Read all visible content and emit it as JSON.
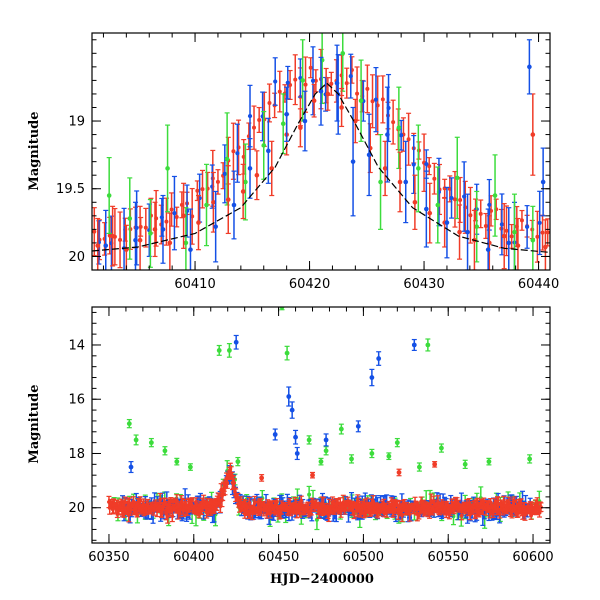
{
  "colors": {
    "g": "#3cdc3c",
    "r": "#f03c28",
    "b": "#1450e6",
    "model": "#000000"
  },
  "chart_data": [
    {
      "type": "scatter",
      "title": "",
      "xlabel": "",
      "ylabel": "Magnitude",
      "xlim": [
        60401,
        60441
      ],
      "ylim": [
        20.1,
        18.35
      ],
      "y_inverted": true,
      "xticks": [
        60410,
        60420,
        60430,
        60440
      ],
      "yticks": [
        19,
        19.5,
        20
      ],
      "ytick_labels": [
        "19",
        "19.5",
        "20"
      ],
      "model": {
        "type": "microlensing-peak",
        "t0": 60421.5,
        "peak_mag": 18.72,
        "baseline_mag": 20.0,
        "x": [
          60401,
          60405,
          60410,
          60414,
          60417,
          60419,
          60420.5,
          60421.5,
          60422.5,
          60424,
          60426,
          60429,
          60433,
          60437,
          60441
        ],
        "y": [
          19.96,
          19.93,
          19.83,
          19.64,
          19.34,
          19.02,
          18.8,
          18.72,
          18.8,
          19.02,
          19.34,
          19.64,
          19.85,
          19.94,
          19.97
        ]
      },
      "series": [
        {
          "band": "g",
          "x": [
            60402.5,
            60404.3,
            60406.1,
            60407.6,
            60409.2,
            60411.0,
            60412.8,
            60414.4,
            60416.0,
            60417.7,
            60419.4,
            60421.1,
            60422.9,
            60424.5,
            60426.2,
            60427.8,
            60429.5,
            60431.2,
            60432.9,
            60434.6,
            60436.2,
            60437.9,
            60439.5
          ],
          "y": [
            19.55,
            19.72,
            19.83,
            19.35,
            19.9,
            19.62,
            19.28,
            19.45,
            19.18,
            19.02,
            18.7,
            18.55,
            18.5,
            18.85,
            19.45,
            19.05,
            19.35,
            19.62,
            19.42,
            19.78,
            19.55,
            19.82,
            19.88
          ],
          "err": [
            0.28,
            0.3,
            0.25,
            0.32,
            0.26,
            0.3,
            0.34,
            0.28,
            0.25,
            0.22,
            0.3,
            0.32,
            0.28,
            0.3,
            0.35,
            0.3,
            0.32,
            0.28,
            0.3,
            0.26,
            0.3,
            0.28,
            0.25
          ]
        },
        {
          "band": "r",
          "x": [
            60401.5,
            60402.8,
            60404.0,
            60405.2,
            60406.5,
            60407.8,
            60409.0,
            60410.3,
            60411.6,
            60412.9,
            60414.2,
            60415.4,
            60416.7,
            60418.0,
            60419.2,
            60420.4,
            60421.6,
            60422.8,
            60424.0,
            60425.3,
            60426.6,
            60427.9,
            60429.2,
            60430.5,
            60431.8,
            60433.1,
            60434.4,
            60435.7,
            60437.0,
            60438.2,
            60439.5,
            60440.6
          ],
          "y": [
            19.92,
            19.85,
            19.95,
            19.88,
            19.8,
            19.9,
            19.7,
            19.75,
            19.6,
            19.58,
            19.52,
            19.4,
            19.35,
            19.1,
            19.05,
            18.85,
            18.8,
            18.9,
            19.0,
            19.2,
            19.35,
            19.45,
            19.6,
            19.68,
            19.75,
            19.82,
            19.88,
            19.9,
            19.85,
            19.92,
            19.1,
            19.93
          ],
          "err": [
            0.2,
            0.22,
            0.18,
            0.25,
            0.2,
            0.22,
            0.24,
            0.2,
            0.22,
            0.25,
            0.2,
            0.18,
            0.2,
            0.15,
            0.14,
            0.12,
            0.12,
            0.14,
            0.16,
            0.18,
            0.2,
            0.22,
            0.2,
            0.22,
            0.18,
            0.2,
            0.22,
            0.2,
            0.24,
            0.2,
            0.3,
            0.2
          ]
        },
        {
          "band": "b",
          "x": [
            60402.2,
            60404.8,
            60407.2,
            60409.6,
            60411.8,
            60413.4,
            60414.8,
            60416.4,
            60418.0,
            60419.6,
            60421.0,
            60422.4,
            60423.8,
            60425.2,
            60426.8,
            60428.4,
            60430.2,
            60432.0,
            60433.8,
            60435.6,
            60437.4,
            60439.2,
            60440.4
          ],
          "y": [
            19.92,
            19.88,
            19.8,
            19.95,
            19.78,
            19.62,
            19.35,
            19.22,
            18.95,
            19.0,
            18.78,
            18.72,
            19.3,
            19.25,
            19.1,
            19.45,
            19.65,
            19.75,
            19.82,
            19.95,
            19.9,
            18.6,
            19.45
          ],
          "err": [
            0.26,
            0.28,
            0.25,
            0.3,
            0.26,
            0.25,
            0.22,
            0.24,
            0.2,
            0.22,
            0.25,
            0.28,
            0.4,
            0.3,
            0.35,
            0.3,
            0.28,
            0.26,
            0.28,
            0.3,
            0.26,
            0.2,
            0.25
          ]
        }
      ]
    },
    {
      "type": "scatter",
      "title": "",
      "xlabel": "HJD−2400000",
      "ylabel": "Magnitude",
      "xlim": [
        60340,
        60610
      ],
      "ylim": [
        21.3,
        12.6
      ],
      "y_inverted": true,
      "xticks": [
        60350,
        60400,
        60450,
        60500,
        60550,
        60600
      ],
      "yticks": [
        14,
        16,
        18,
        20
      ],
      "ytick_labels": [
        "14",
        "16",
        "18",
        "20"
      ],
      "baseline": {
        "x_start": 60350,
        "x_end": 60605,
        "mag": 20.0,
        "g_scatter": 0.55,
        "r_scatter": 0.42,
        "b_scatter": 0.4
      },
      "bump": {
        "t0": 60421,
        "peak_mag": 18.75,
        "width_days": 3
      },
      "series": [
        {
          "band": "g",
          "x": [
            60362,
            60366,
            60375,
            60383,
            60390,
            60398,
            60415,
            60421,
            60426,
            60452,
            60455,
            60468,
            60475,
            60478,
            60487,
            60493,
            60505,
            60515,
            60520,
            60533,
            60538,
            60546,
            60560,
            60574,
            60598
          ],
          "y": [
            16.9,
            17.5,
            17.6,
            17.9,
            18.3,
            18.5,
            14.2,
            14.2,
            18.3,
            12.6,
            14.3,
            17.5,
            18.3,
            17.9,
            17.1,
            18.2,
            18.0,
            18.1,
            17.6,
            18.5,
            14.0,
            17.8,
            18.4,
            18.3,
            18.2
          ],
          "err": [
            0.15,
            0.18,
            0.15,
            0.15,
            0.12,
            0.12,
            0.18,
            0.25,
            0.15,
            0.1,
            0.25,
            0.15,
            0.12,
            0.15,
            0.18,
            0.15,
            0.15,
            0.12,
            0.15,
            0.15,
            0.22,
            0.15,
            0.15,
            0.12,
            0.15
          ]
        },
        {
          "band": "b",
          "x": [
            60363,
            60425,
            60448,
            60456,
            60458,
            60460,
            60461,
            60478,
            60497,
            60505,
            60509,
            60530
          ],
          "y": [
            18.5,
            13.9,
            17.3,
            15.9,
            16.4,
            17.4,
            18.0,
            17.5,
            17.0,
            15.2,
            14.5,
            14.0
          ],
          "err": [
            0.2,
            0.25,
            0.2,
            0.35,
            0.3,
            0.25,
            0.22,
            0.22,
            0.2,
            0.3,
            0.25,
            0.2
          ]
        },
        {
          "band": "r",
          "x": [
            60440,
            60470,
            60521,
            60542
          ],
          "y": [
            18.9,
            18.8,
            18.7,
            18.4
          ],
          "err": [
            0.12,
            0.1,
            0.12,
            0.1
          ]
        }
      ]
    }
  ]
}
